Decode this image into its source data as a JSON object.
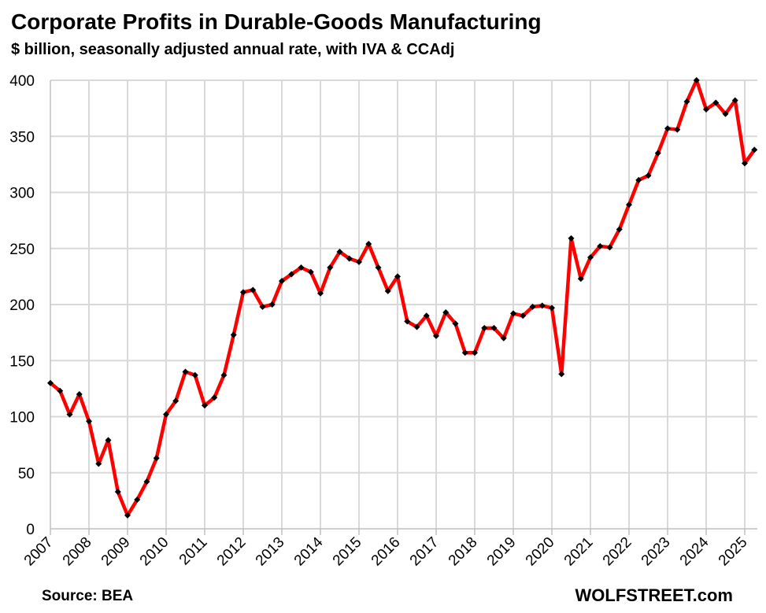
{
  "chart_data": {
    "type": "line",
    "title": "Corporate Profits in Durable-Goods Manufacturing",
    "subtitle": "$ billion, seasonally adjusted annual rate, with IVA & CCAdj",
    "xlabel": "",
    "ylabel": "",
    "x_range": [
      2007.0,
      2025.5
    ],
    "ylim": [
      0,
      400
    ],
    "y_ticks": [
      0,
      50,
      100,
      150,
      200,
      250,
      300,
      350,
      400
    ],
    "x_ticks": [
      "2007",
      "2008",
      "2009",
      "2010",
      "2011",
      "2012",
      "2013",
      "2014",
      "2015",
      "2016",
      "2017",
      "2018",
      "2019",
      "2020",
      "2021",
      "2022",
      "2023",
      "2024",
      "2025"
    ],
    "grid": "vertical and horizontal",
    "legend": "none",
    "colors": {
      "line": "#ff0000",
      "markers": "#000000",
      "grid": "#d9d9d9"
    },
    "x_start": "2007 Q1",
    "frequency": "quarterly",
    "series": [
      {
        "values": [
          130,
          123,
          102,
          120,
          96,
          58,
          79,
          33,
          12,
          26,
          42,
          63,
          102,
          114,
          140,
          137,
          110,
          117,
          137,
          173,
          211,
          213,
          198,
          200,
          221,
          227,
          233,
          229,
          210,
          233,
          247,
          241,
          238,
          254,
          233,
          212,
          225,
          185,
          180,
          190,
          172,
          193,
          183,
          157,
          157,
          179,
          179,
          170,
          192,
          190,
          198,
          199,
          197,
          138,
          259,
          223,
          242,
          252,
          251,
          267,
          289,
          311,
          315,
          335,
          357,
          356,
          381,
          400,
          374,
          380,
          370,
          382,
          326,
          338
        ]
      }
    ],
    "source": "Source: BEA",
    "watermark": "WOLFSTREET.com"
  }
}
